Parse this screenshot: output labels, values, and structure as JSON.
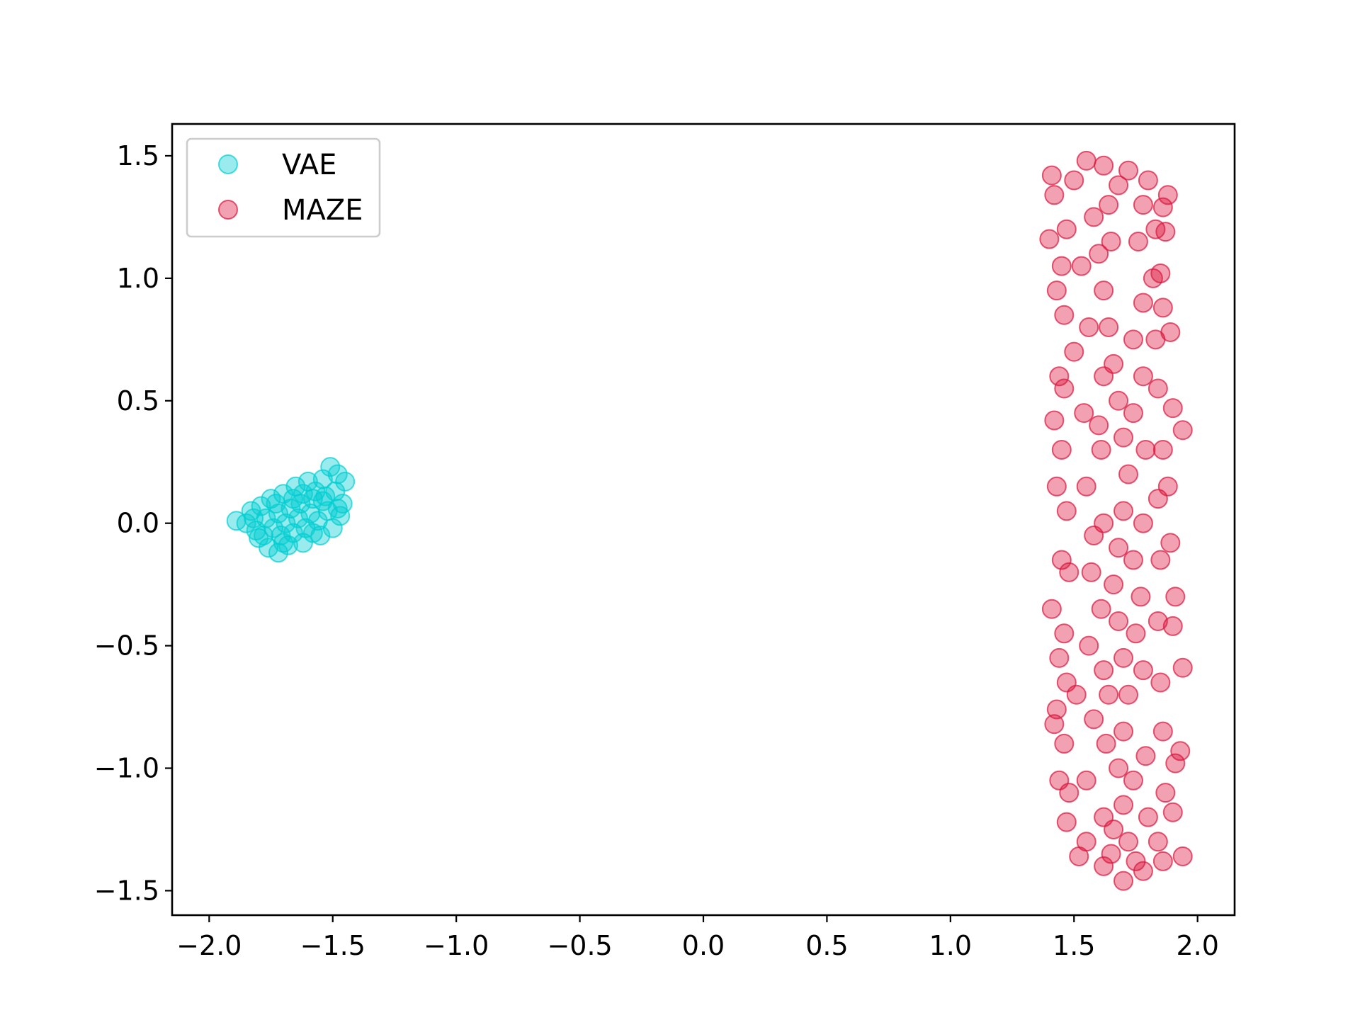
{
  "chart_data": {
    "type": "scatter",
    "title": "",
    "xlabel": "",
    "ylabel": "",
    "xlim": [
      -2.15,
      2.15
    ],
    "ylim": [
      -1.6,
      1.63
    ],
    "x_ticks": [
      -2.0,
      -1.5,
      -1.0,
      -0.5,
      0.0,
      0.5,
      1.0,
      1.5,
      2.0
    ],
    "y_ticks": [
      -1.5,
      -1.0,
      -0.5,
      0.0,
      0.5,
      1.0,
      1.5
    ],
    "x_tick_labels": [
      "−2.0",
      "−1.5",
      "−1.0",
      "−0.5",
      "0.0",
      "0.5",
      "1.0",
      "1.5",
      "2.0"
    ],
    "y_tick_labels": [
      "−1.5",
      "−1.0",
      "−0.5",
      "0.0",
      "0.5",
      "1.0",
      "1.5"
    ],
    "grid": false,
    "legend_position": "upper-left",
    "series": [
      {
        "name": "VAE",
        "color": "#00CED1",
        "alpha": 0.4,
        "points": [
          [
            -1.89,
            0.01
          ],
          [
            -1.45,
            0.17
          ],
          [
            -1.51,
            0.23
          ],
          [
            -1.48,
            0.2
          ],
          [
            -1.83,
            0.05
          ],
          [
            -1.8,
            -0.06
          ],
          [
            -1.76,
            -0.1
          ],
          [
            -1.72,
            -0.12
          ],
          [
            -1.68,
            -0.09
          ],
          [
            -1.62,
            -0.08
          ],
          [
            -1.55,
            -0.05
          ],
          [
            -1.5,
            -0.02
          ],
          [
            -1.47,
            0.03
          ],
          [
            -1.46,
            0.08
          ],
          [
            -1.49,
            0.13
          ],
          [
            -1.54,
            0.18
          ],
          [
            -1.6,
            0.17
          ],
          [
            -1.65,
            0.15
          ],
          [
            -1.7,
            0.12
          ],
          [
            -1.75,
            0.1
          ],
          [
            -1.79,
            0.07
          ],
          [
            -1.82,
            0.02
          ],
          [
            -1.81,
            -0.03
          ],
          [
            -1.77,
            0.02
          ],
          [
            -1.72,
            0.04
          ],
          [
            -1.67,
            0.06
          ],
          [
            -1.63,
            0.08
          ],
          [
            -1.58,
            0.1
          ],
          [
            -1.54,
            0.09
          ],
          [
            -1.52,
            0.05
          ],
          [
            -1.56,
            0.01
          ],
          [
            -1.61,
            -0.02
          ],
          [
            -1.66,
            -0.04
          ],
          [
            -1.71,
            -0.05
          ],
          [
            -1.74,
            -0.02
          ],
          [
            -1.69,
            0.0
          ],
          [
            -1.64,
            0.02
          ],
          [
            -1.59,
            0.04
          ],
          [
            -1.57,
            0.13
          ],
          [
            -1.62,
            0.12
          ],
          [
            -1.73,
            0.08
          ],
          [
            -1.78,
            -0.05
          ],
          [
            -1.7,
            -0.08
          ],
          [
            -1.58,
            -0.04
          ],
          [
            -1.53,
            0.11
          ],
          [
            -1.48,
            0.06
          ],
          [
            -1.85,
            0.0
          ],
          [
            -1.66,
            0.1
          ]
        ]
      },
      {
        "name": "MAZE",
        "color": "#DC143C",
        "alpha": 0.4,
        "points": [
          [
            1.41,
            1.42
          ],
          [
            1.42,
            1.34
          ],
          [
            1.4,
            1.16
          ],
          [
            1.43,
            0.95
          ],
          [
            1.44,
            0.6
          ],
          [
            1.42,
            0.42
          ],
          [
            1.43,
            0.15
          ],
          [
            1.45,
            -0.15
          ],
          [
            1.41,
            -0.35
          ],
          [
            1.44,
            -0.55
          ],
          [
            1.43,
            -0.76
          ],
          [
            1.42,
            -0.82
          ],
          [
            1.44,
            -1.05
          ],
          [
            1.47,
            -1.22
          ],
          [
            1.52,
            -1.36
          ],
          [
            1.62,
            -1.4
          ],
          [
            1.7,
            -1.46
          ],
          [
            1.78,
            -1.42
          ],
          [
            1.86,
            -1.38
          ],
          [
            1.94,
            -1.36
          ],
          [
            1.9,
            -1.18
          ],
          [
            1.91,
            -0.98
          ],
          [
            1.93,
            -0.93
          ],
          [
            1.94,
            -0.59
          ],
          [
            1.9,
            -0.42
          ],
          [
            1.91,
            -0.3
          ],
          [
            1.89,
            -0.08
          ],
          [
            1.88,
            0.15
          ],
          [
            1.94,
            0.38
          ],
          [
            1.9,
            0.47
          ],
          [
            1.89,
            0.78
          ],
          [
            1.86,
            0.88
          ],
          [
            1.85,
            1.02
          ],
          [
            1.87,
            1.19
          ],
          [
            1.88,
            1.34
          ],
          [
            1.86,
            1.29
          ],
          [
            1.8,
            1.4
          ],
          [
            1.72,
            1.44
          ],
          [
            1.62,
            1.46
          ],
          [
            1.55,
            1.48
          ],
          [
            1.5,
            1.4
          ],
          [
            1.47,
            1.2
          ],
          [
            1.45,
            1.05
          ],
          [
            1.46,
            0.85
          ],
          [
            1.46,
            0.55
          ],
          [
            1.45,
            0.3
          ],
          [
            1.47,
            0.05
          ],
          [
            1.48,
            -0.2
          ],
          [
            1.46,
            -0.45
          ],
          [
            1.47,
            -0.65
          ],
          [
            1.46,
            -0.9
          ],
          [
            1.48,
            -1.1
          ],
          [
            1.55,
            -1.3
          ],
          [
            1.65,
            -1.35
          ],
          [
            1.75,
            -1.38
          ],
          [
            1.84,
            -1.3
          ],
          [
            1.87,
            -1.1
          ],
          [
            1.86,
            -0.85
          ],
          [
            1.85,
            -0.65
          ],
          [
            1.84,
            -0.4
          ],
          [
            1.85,
            -0.15
          ],
          [
            1.84,
            0.1
          ],
          [
            1.86,
            0.3
          ],
          [
            1.84,
            0.55
          ],
          [
            1.83,
            0.75
          ],
          [
            1.82,
            1.0
          ],
          [
            1.83,
            1.2
          ],
          [
            1.78,
            1.3
          ],
          [
            1.58,
            1.25
          ],
          [
            1.6,
            1.1
          ],
          [
            1.62,
            0.95
          ],
          [
            1.64,
            0.8
          ],
          [
            1.66,
            0.65
          ],
          [
            1.68,
            0.5
          ],
          [
            1.7,
            0.35
          ],
          [
            1.72,
            0.2
          ],
          [
            1.7,
            0.05
          ],
          [
            1.68,
            -0.1
          ],
          [
            1.66,
            -0.25
          ],
          [
            1.68,
            -0.4
          ],
          [
            1.7,
            -0.55
          ],
          [
            1.72,
            -0.7
          ],
          [
            1.7,
            -0.85
          ],
          [
            1.68,
            -1.0
          ],
          [
            1.7,
            -1.15
          ],
          [
            1.72,
            -1.3
          ],
          [
            1.55,
            -1.05
          ],
          [
            1.58,
            -0.8
          ],
          [
            1.56,
            -0.5
          ],
          [
            1.57,
            -0.2
          ],
          [
            1.55,
            0.15
          ],
          [
            1.54,
            0.45
          ],
          [
            1.56,
            0.8
          ],
          [
            1.53,
            1.05
          ],
          [
            1.76,
            1.15
          ],
          [
            1.78,
            0.9
          ],
          [
            1.78,
            0.6
          ],
          [
            1.79,
            0.3
          ],
          [
            1.78,
            0.0
          ],
          [
            1.77,
            -0.3
          ],
          [
            1.78,
            -0.6
          ],
          [
            1.79,
            -0.95
          ],
          [
            1.8,
            -1.2
          ],
          [
            1.62,
            -1.2
          ],
          [
            1.63,
            -0.9
          ],
          [
            1.62,
            -0.6
          ],
          [
            1.61,
            -0.35
          ],
          [
            1.62,
            0.0
          ],
          [
            1.61,
            0.3
          ],
          [
            1.62,
            0.6
          ],
          [
            1.64,
            1.3
          ],
          [
            1.68,
            1.38
          ],
          [
            1.74,
            0.75
          ],
          [
            1.74,
            0.45
          ],
          [
            1.74,
            -0.15
          ],
          [
            1.75,
            -0.45
          ],
          [
            1.74,
            -1.05
          ],
          [
            1.65,
            1.15
          ],
          [
            1.6,
            0.4
          ],
          [
            1.58,
            -0.05
          ],
          [
            1.64,
            -0.7
          ],
          [
            1.66,
            -1.25
          ],
          [
            1.5,
            0.7
          ],
          [
            1.51,
            -0.7
          ]
        ]
      }
    ]
  }
}
